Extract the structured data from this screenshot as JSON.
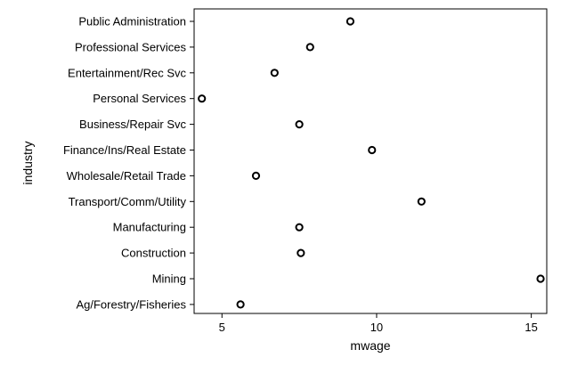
{
  "chart_data": {
    "type": "scatter",
    "orientation": "horizontal-dot",
    "xlabel": "mwage",
    "ylabel": "industry",
    "xlim": [
      4.1,
      15.5
    ],
    "xticks": [
      5,
      10,
      15
    ],
    "xtick_labels": [
      "5",
      "10",
      "15"
    ],
    "grid": false,
    "marker": "hollow-circle",
    "categories": [
      "Public Administration",
      "Professional Services",
      "Entertainment/Rec Svc",
      "Personal Services",
      "Business/Repair Svc",
      "Finance/Ins/Real Estate",
      "Wholesale/Retail Trade",
      "Transport/Comm/Utility",
      "Manufacturing",
      "Construction",
      "Mining",
      "Ag/Forestry/Fisheries"
    ],
    "values": [
      9.15,
      7.85,
      6.7,
      4.35,
      7.5,
      9.85,
      6.1,
      11.45,
      7.5,
      7.55,
      15.3,
      5.6
    ]
  },
  "colors": {
    "marker_stroke": "#000000",
    "marker_fill": "#ffffff",
    "axis": "#000000",
    "background": "#ffffff"
  }
}
